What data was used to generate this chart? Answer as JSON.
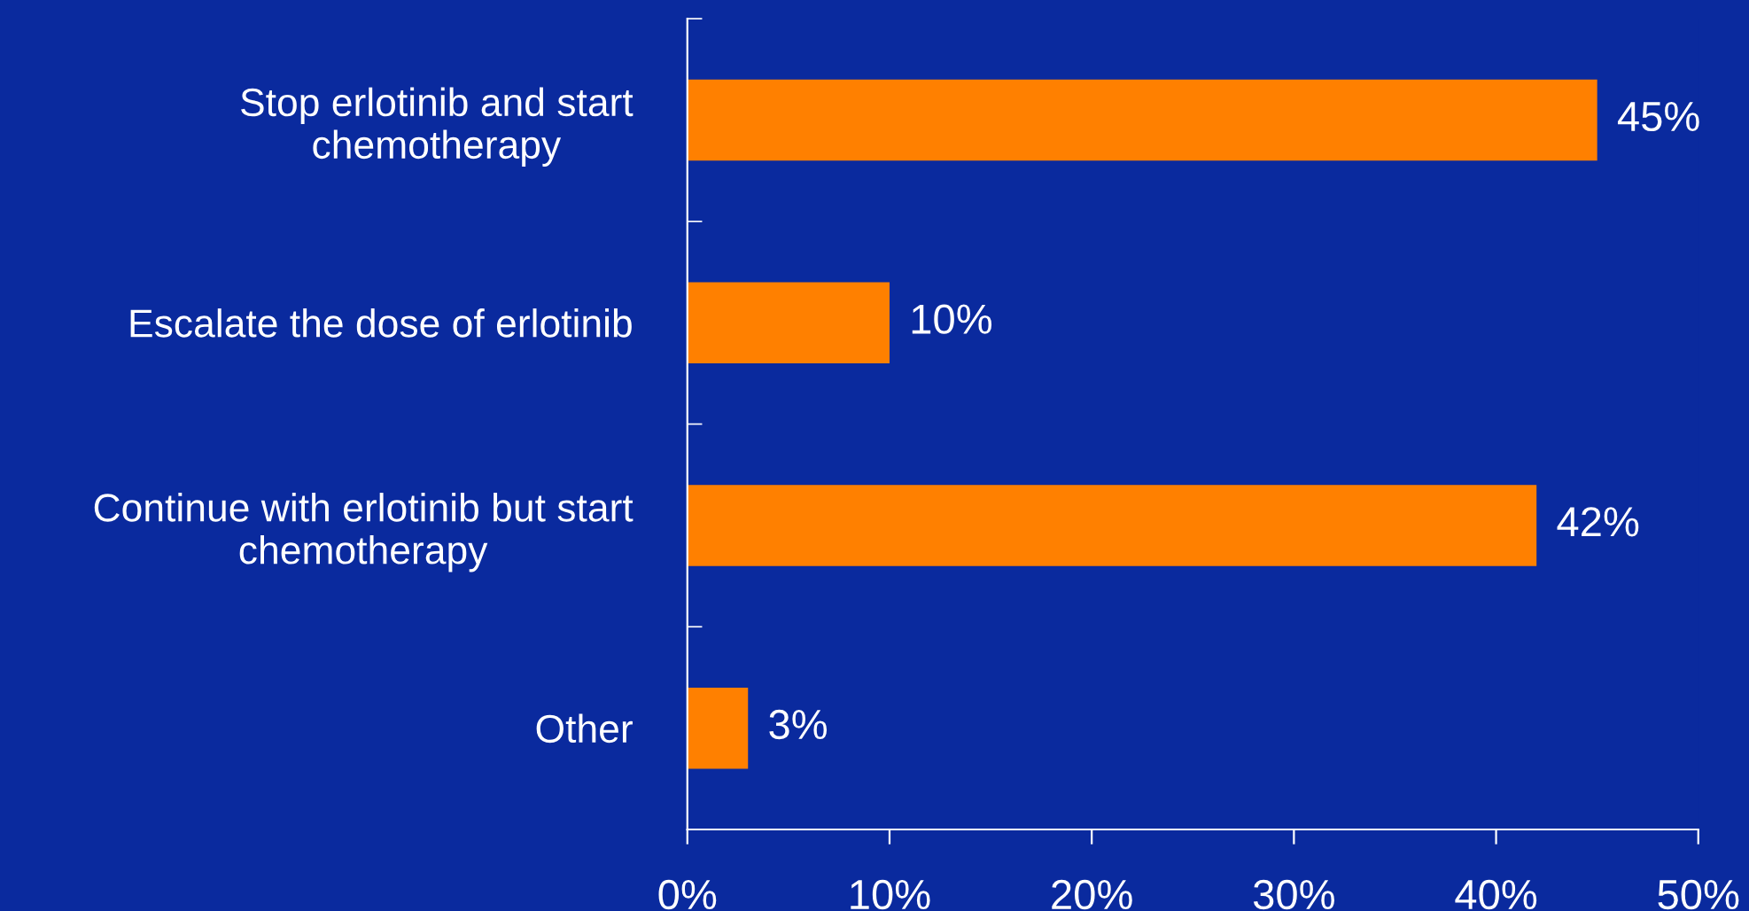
{
  "chart_data": {
    "type": "bar",
    "orientation": "horizontal",
    "categories": [
      "Stop erlotinib and start\nchemotherapy",
      "Escalate the dose of erlotinib",
      "Continue with erlotinib but start\nchemotherapy",
      "Other"
    ],
    "values": [
      45,
      10,
      42,
      3
    ],
    "value_labels": [
      "45%",
      "10%",
      "42%",
      "3%"
    ],
    "color": "#ff8000",
    "xlim": [
      0,
      50
    ],
    "xticks": [
      {
        "value": 0,
        "label": "0%"
      },
      {
        "value": 10,
        "label": "10%"
      },
      {
        "value": 20,
        "label": "20%"
      },
      {
        "value": 30,
        "label": "30%"
      },
      {
        "value": 40,
        "label": "40%"
      },
      {
        "value": 50,
        "label": "50%"
      }
    ],
    "grid": false,
    "legend": false
  }
}
